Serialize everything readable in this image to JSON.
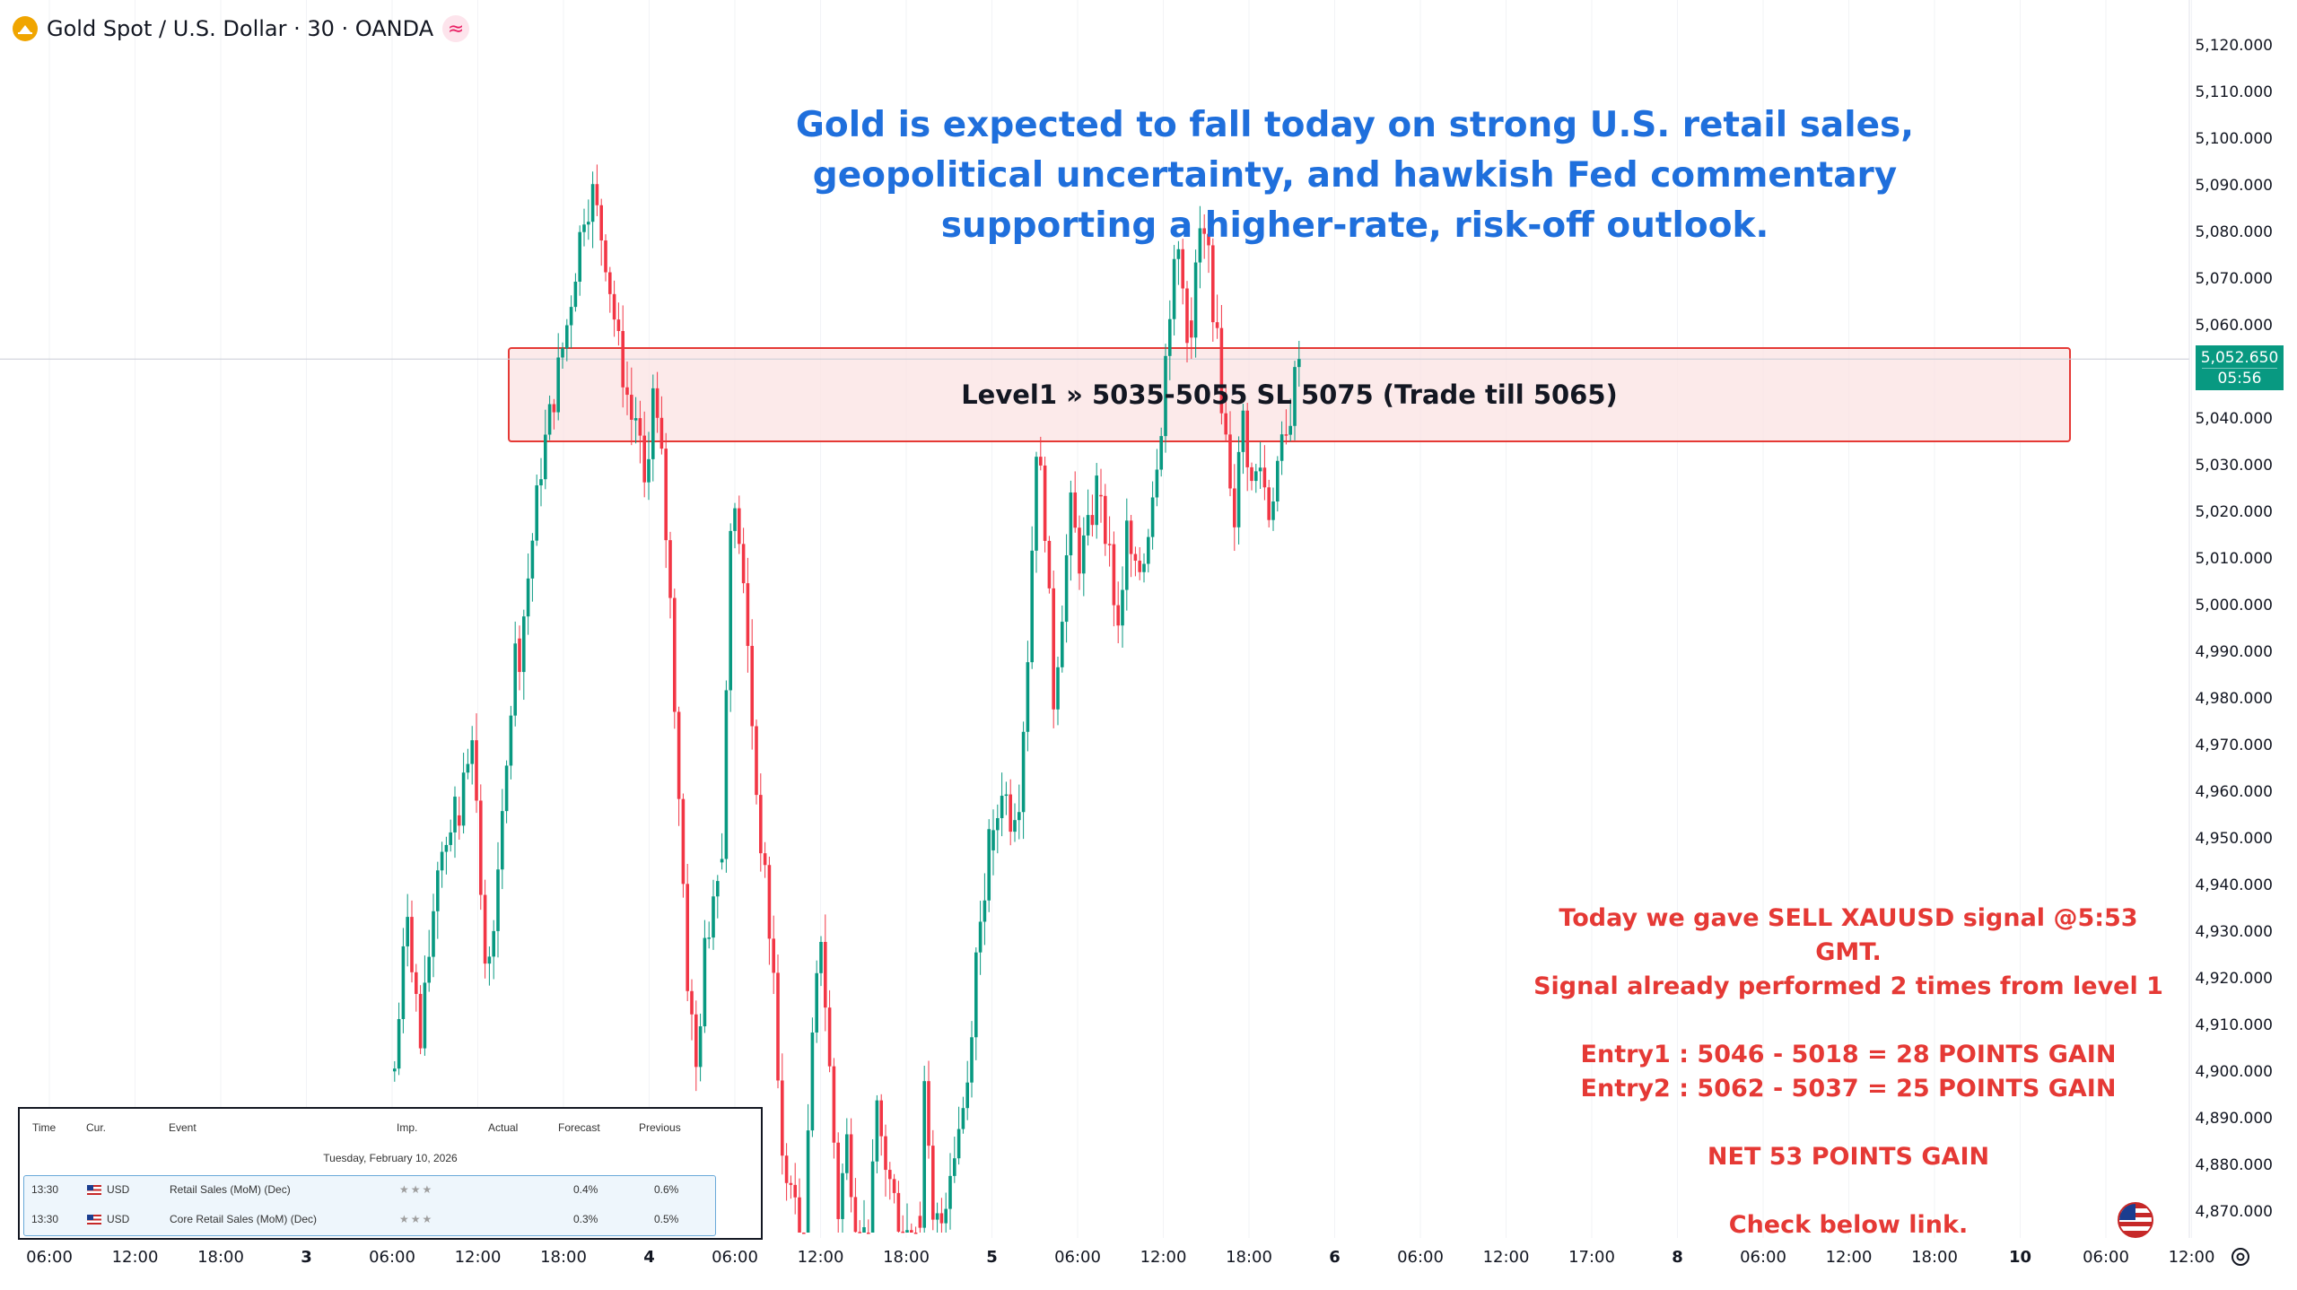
{
  "header": {
    "title": "Gold Spot / U.S. Dollar · 30 · OANDA",
    "logo_icon": "gold-coin-icon",
    "indicator_icon": "wave-icon"
  },
  "headline": [
    "Gold is expected to fall today on strong U.S. retail sales,",
    "geopolitical uncertainty, and hawkish Fed commentary",
    "supporting a higher-rate, risk-off outlook."
  ],
  "zone": {
    "label": "Level1 » 5035-5055 SL 5075 (Trade till 5065)",
    "low": 5035,
    "high": 5055
  },
  "last_price": {
    "value": "5,052.650",
    "countdown": "05:56",
    "numeric": 5052.65
  },
  "signal": {
    "line1": "Today we gave SELL XAUUSD signal @5:53 GMT.",
    "line2": "Signal already performed 2 times from level 1",
    "entry1": "Entry1 : 5046 - 5018 = 28 POINTS GAIN",
    "entry2": "Entry2 : 5062 - 5037 = 25 POINTS GAIN",
    "net": "NET 53 POINTS GAIN",
    "link": "Check below link."
  },
  "calendar": {
    "headers": {
      "time": "Time",
      "cur": "Cur.",
      "event": "Event",
      "imp": "Imp.",
      "actual": "Actual",
      "forecast": "Forecast",
      "previous": "Previous"
    },
    "date": "Tuesday, February 10, 2026",
    "rows": [
      {
        "time": "13:30",
        "cur": "USD",
        "event": "Retail Sales (MoM) (Dec)",
        "imp": "★★★",
        "actual": "",
        "forecast": "0.4%",
        "previous": "0.6%"
      },
      {
        "time": "13:30",
        "cur": "USD",
        "event": "Core Retail Sales (MoM) (Dec)",
        "imp": "★★★",
        "actual": "",
        "forecast": "0.3%",
        "previous": "0.5%"
      }
    ]
  },
  "chart_data": {
    "type": "candlestick",
    "series_name": "XAUUSD 30m",
    "colors": {
      "up": "#089981",
      "down": "#f23645",
      "zone_fill": "#fbe3e3",
      "zone_border": "#e53935"
    },
    "y_axis": {
      "ticks": [
        "5,120.000",
        "5,110.000",
        "5,100.000",
        "5,090.000",
        "5,080.000",
        "5,070.000",
        "5,060.000",
        "5,040.000",
        "5,030.000",
        "5,020.000",
        "5,010.000",
        "5,000.000",
        "4,990.000",
        "4,980.000",
        "4,970.000",
        "4,960.000",
        "4,950.000",
        "4,940.000",
        "4,930.000",
        "4,920.000",
        "4,910.000",
        "4,900.000",
        "4,890.000",
        "4,880.000",
        "4,870.000"
      ],
      "range": [
        4865,
        5125
      ]
    },
    "x_axis": {
      "ticks": [
        "06:00",
        "12:00",
        "18:00",
        "3",
        "06:00",
        "12:00",
        "18:00",
        "4",
        "06:00",
        "12:00",
        "18:00",
        "5",
        "06:00",
        "12:00",
        "18:00",
        "6",
        "06:00",
        "12:00",
        "17:00",
        "8",
        "06:00",
        "12:00",
        "18:00",
        "10",
        "06:00",
        "12:00"
      ],
      "bold": [
        "3",
        "4",
        "5",
        "6",
        "8",
        "10"
      ]
    },
    "segments": [
      {
        "from": 0,
        "to": 14,
        "points": [
          [
            0,
            4900
          ],
          [
            3,
            4935
          ],
          [
            6,
            4905
          ],
          [
            10,
            4945
          ],
          [
            14,
            4955
          ]
        ]
      },
      {
        "from": 15,
        "to": 28,
        "points": [
          [
            15,
            4955
          ],
          [
            18,
            4975
          ],
          [
            21,
            4920
          ],
          [
            24,
            4940
          ],
          [
            28,
            4990
          ]
        ]
      },
      {
        "from": 29,
        "to": 55,
        "points": [
          [
            29,
            4990
          ],
          [
            34,
            5030
          ],
          [
            37,
            5045
          ],
          [
            40,
            5060
          ],
          [
            44,
            5085
          ],
          [
            46,
            5088
          ],
          [
            49,
            5075
          ],
          [
            52,
            5055
          ],
          [
            55,
            5040
          ]
        ]
      },
      {
        "from": 56,
        "to": 75,
        "points": [
          [
            56,
            5040
          ],
          [
            58,
            5025
          ],
          [
            60,
            5045
          ],
          [
            62,
            5030
          ],
          [
            64,
            5000
          ],
          [
            66,
            4960
          ],
          [
            68,
            4920
          ],
          [
            70,
            4900
          ],
          [
            72,
            4925
          ],
          [
            75,
            4945
          ]
        ]
      },
      {
        "from": 76,
        "to": 94,
        "points": [
          [
            76,
            4945
          ],
          [
            78,
            5020
          ],
          [
            80,
            5015
          ],
          [
            82,
            4990
          ],
          [
            84,
            4960
          ],
          [
            86,
            4940
          ],
          [
            88,
            4920
          ],
          [
            90,
            4880
          ],
          [
            92,
            4875
          ],
          [
            94,
            4865
          ]
        ]
      },
      {
        "from": 95,
        "to": 109,
        "points": [
          [
            95,
            4865
          ],
          [
            97,
            4905
          ],
          [
            99,
            4930
          ],
          [
            101,
            4900
          ],
          [
            103,
            4870
          ],
          [
            105,
            4885
          ],
          [
            107,
            4870
          ],
          [
            109,
            4865
          ]
        ]
      },
      {
        "from": 110,
        "to": 121,
        "points": [
          [
            110,
            4865
          ],
          [
            112,
            4890
          ],
          [
            114,
            4880
          ],
          [
            116,
            4872
          ],
          [
            118,
            4866
          ],
          [
            121,
            4865
          ]
        ]
      },
      {
        "from": 122,
        "to": 138,
        "points": [
          [
            122,
            4870
          ],
          [
            123,
            4895
          ],
          [
            125,
            4866
          ],
          [
            127,
            4868
          ],
          [
            129,
            4880
          ],
          [
            131,
            4888
          ],
          [
            133,
            4898
          ],
          [
            135,
            4925
          ],
          [
            138,
            4948
          ]
        ]
      },
      {
        "from": 139,
        "to": 163,
        "points": [
          [
            139,
            4948
          ],
          [
            141,
            4962
          ],
          [
            143,
            4955
          ],
          [
            145,
            4960
          ],
          [
            147,
            4990
          ],
          [
            149,
            5035
          ],
          [
            151,
            5018
          ],
          [
            153,
            4980
          ],
          [
            155,
            5000
          ],
          [
            157,
            5020
          ],
          [
            159,
            5010
          ],
          [
            161,
            5015
          ],
          [
            163,
            5025
          ]
        ]
      },
      {
        "from": 164,
        "to": 184,
        "points": [
          [
            164,
            5025
          ],
          [
            166,
            5010
          ],
          [
            168,
            4995
          ],
          [
            170,
            5015
          ],
          [
            172,
            5005
          ],
          [
            174,
            5010
          ],
          [
            176,
            5025
          ],
          [
            178,
            5040
          ],
          [
            180,
            5065
          ],
          [
            182,
            5075
          ],
          [
            184,
            5060
          ]
        ]
      },
      {
        "from": 185,
        "to": 210,
        "points": [
          [
            185,
            5060
          ],
          [
            187,
            5080
          ],
          [
            189,
            5075
          ],
          [
            191,
            5055
          ],
          [
            193,
            5035
          ],
          [
            195,
            5020
          ],
          [
            197,
            5040
          ],
          [
            199,
            5025
          ],
          [
            201,
            5030
          ],
          [
            203,
            5020
          ],
          [
            205,
            5030
          ],
          [
            207,
            5035
          ],
          [
            209,
            5048
          ],
          [
            210,
            5052.65
          ]
        ]
      }
    ]
  }
}
